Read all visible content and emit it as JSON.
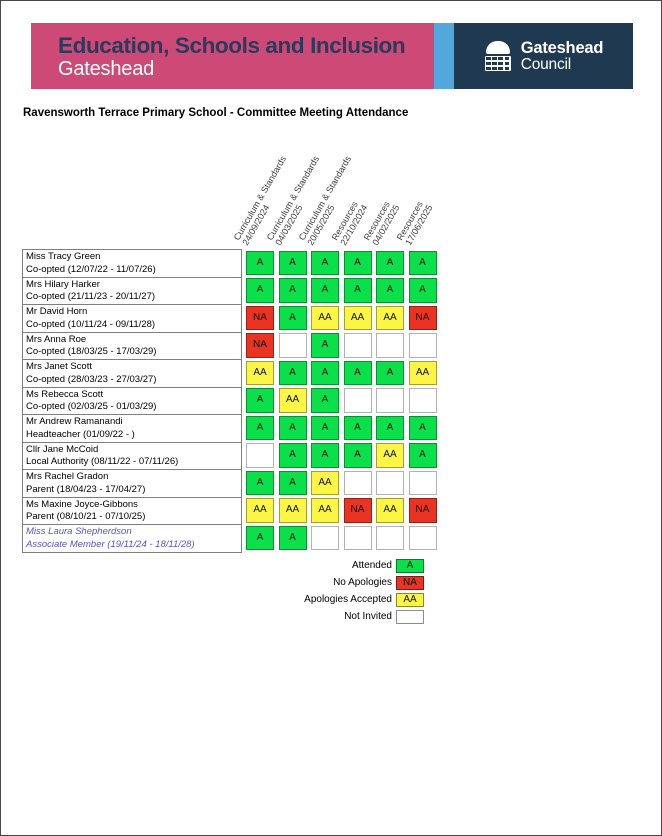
{
  "page": {
    "title": "Ravensworth Terrace Primary School - Committee Meeting Attendance"
  },
  "banner": {
    "department": "Education, Schools and Inclusion",
    "location": "Gateshead",
    "logo_line1": "Gateshead",
    "logo_line2": "Council",
    "colors": {
      "pink": "#CD4A77",
      "light_blue": "#52A8DC",
      "navy": "#1F3951",
      "department_text": "#2A3A5C"
    }
  },
  "table": {
    "columns": [
      {
        "committee": "Curriculum & Standards",
        "date": "24/09/2024"
      },
      {
        "committee": "Curriculum & Standards",
        "date": "04/03/2025"
      },
      {
        "committee": "Curriculum & Standards",
        "date": "20/05/2025"
      },
      {
        "committee": "Resources",
        "date": "22/10/2024"
      },
      {
        "committee": "Resources",
        "date": "04/02/2025"
      },
      {
        "committee": "Resources",
        "date": "17/06/2025"
      }
    ],
    "rows": [
      {
        "name": "Miss Tracy Green",
        "role": "Co-opted (12/07/22 - 11/07/26)",
        "attendance": [
          "A",
          "A",
          "A",
          "A",
          "A",
          "A"
        ],
        "highlight": false
      },
      {
        "name": "Mrs Hilary Harker",
        "role": "Co-opted (21/11/23 - 20/11/27)",
        "attendance": [
          "A",
          "A",
          "A",
          "A",
          "A",
          "A"
        ],
        "highlight": false
      },
      {
        "name": "Mr David Horn",
        "role": "Co-opted (10/11/24 - 09/11/28)",
        "attendance": [
          "NA",
          "A",
          "AA",
          "AA",
          "AA",
          "NA"
        ],
        "highlight": false
      },
      {
        "name": "Mrs Anna Roe",
        "role": "Co-opted (18/03/25 - 17/03/29)",
        "attendance": [
          "NA",
          "",
          "A",
          "",
          "",
          ""
        ],
        "highlight": false
      },
      {
        "name": "Mrs Janet Scott",
        "role": "Co-opted (28/03/23 - 27/03/27)",
        "attendance": [
          "AA",
          "A",
          "A",
          "A",
          "A",
          "AA"
        ],
        "highlight": false
      },
      {
        "name": "Ms Rebecca Scott",
        "role": "Co-opted (02/03/25 - 01/03/29)",
        "attendance": [
          "A",
          "AA",
          "A",
          "",
          "",
          ""
        ],
        "highlight": false
      },
      {
        "name": "Mr Andrew Ramanandi",
        "role": "Headteacher (01/09/22 - )",
        "attendance": [
          "A",
          "A",
          "A",
          "A",
          "A",
          "A"
        ],
        "highlight": false
      },
      {
        "name": "Cllr Jane McCoid",
        "role": "Local Authority (08/11/22 - 07/11/26)",
        "attendance": [
          "",
          "A",
          "A",
          "A",
          "AA",
          "A"
        ],
        "highlight": false
      },
      {
        "name": "Mrs Rachel Gradon",
        "role": "Parent (18/04/23 - 17/04/27)",
        "attendance": [
          "A",
          "A",
          "AA",
          "",
          "",
          ""
        ],
        "highlight": false
      },
      {
        "name": "Ms Maxine Joyce-Gibbons",
        "role": "Parent (08/10/21 - 07/10/25)",
        "attendance": [
          "AA",
          "AA",
          "AA",
          "NA",
          "AA",
          "NA"
        ],
        "highlight": false
      },
      {
        "name": "Miss Laura Shepherdson",
        "role": "Associate Member (19/11/24 - 18/11/28)",
        "attendance": [
          "A",
          "A",
          "",
          "",
          "",
          ""
        ],
        "highlight": true
      }
    ]
  },
  "legend": {
    "items": [
      {
        "label": "Attended",
        "code": "A"
      },
      {
        "label": "No Apologies",
        "code": "NA"
      },
      {
        "label": "Apologies Accepted",
        "code": "AA"
      },
      {
        "label": "Not Invited",
        "code": ""
      }
    ]
  },
  "status_colors": {
    "A": "#0BE04A",
    "NA": "#EA3323",
    "AA": "#FBF646",
    "": "#FFFFFF"
  },
  "highlight_text_color": "#5B52CE"
}
